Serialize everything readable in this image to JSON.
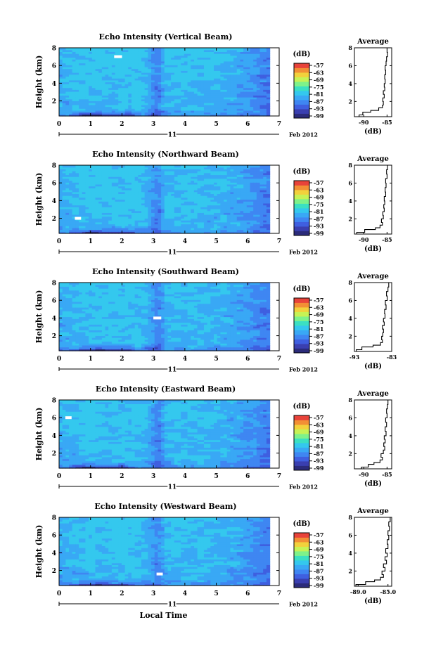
{
  "colors": {
    "colormap": [
      "#2b2b7a",
      "#3a3fb0",
      "#3f5fe0",
      "#3f86f2",
      "#39a8f5",
      "#34c8ee",
      "#3be0c2",
      "#7ef28a",
      "#c7f255",
      "#f2d13c",
      "#f28f35",
      "#e8433a"
    ],
    "axis": "#000000",
    "gap": "#ffffff"
  },
  "common": {
    "xlabel": "Local Time",
    "date_label": "11",
    "date_month": "Feb 2012",
    "ylabel": "Height (km)",
    "colorbar_unit": "(dB)",
    "avg_title": "Average",
    "avg_xlabel": "(dB)"
  },
  "chart_data": [
    {
      "type": "heatmap",
      "title": "Echo Intensity (Vertical Beam)",
      "xlabel": "Local Time",
      "ylabel": "Height (km)",
      "xlim": [
        0,
        7
      ],
      "ylim": [
        0.3,
        8
      ],
      "data_end_time": 6.7,
      "x_ticks": [
        "0",
        "1",
        "2",
        "3",
        "4",
        "5",
        "6",
        "7"
      ],
      "y_ticks": [
        "2",
        "4",
        "6",
        "8"
      ],
      "colorbar": {
        "label": "(dB)",
        "ticks": [
          "-57",
          "-63",
          "-69",
          "-75",
          "-81",
          "-87",
          "-93",
          "-99"
        ]
      },
      "profile": {
        "title": "Average",
        "xlabel": "(dB)",
        "xlim": [
          -92,
          -84
        ],
        "x_ticks": [
          "-90",
          "-85"
        ],
        "y_ticks": [
          "2",
          "4",
          "6",
          "8"
        ],
        "heights": [
          0.3,
          0.5,
          0.8,
          1.0,
          1.3,
          1.6,
          2.0,
          2.4,
          2.8,
          3.2,
          3.6,
          4.0,
          4.5,
          5.0,
          5.5,
          6.0,
          6.5,
          7.0,
          7.5,
          8.0
        ],
        "values": [
          -91.0,
          -90.2,
          -88.5,
          -86.8,
          -86.0,
          -85.8,
          -85.9,
          -85.6,
          -85.8,
          -85.5,
          -85.6,
          -85.4,
          -85.5,
          -85.3,
          -85.4,
          -85.2,
          -85.1,
          -84.9,
          -85.0,
          -84.8
        ]
      }
    },
    {
      "type": "heatmap",
      "title": "Echo Intensity (Northward Beam)",
      "xlabel": "Local Time",
      "ylabel": "Height (km)",
      "xlim": [
        0,
        7
      ],
      "ylim": [
        0.3,
        8
      ],
      "data_end_time": 6.7,
      "x_ticks": [
        "0",
        "1",
        "2",
        "3",
        "4",
        "5",
        "6",
        "7"
      ],
      "y_ticks": [
        "2",
        "4",
        "6",
        "8"
      ],
      "colorbar": {
        "label": "(dB)",
        "ticks": [
          "-57",
          "-63",
          "-69",
          "-75",
          "-81",
          "-87",
          "-93",
          "-99"
        ]
      },
      "profile": {
        "title": "Average",
        "xlabel": "(dB)",
        "xlim": [
          -92,
          -84
        ],
        "x_ticks": [
          "-90",
          "-85"
        ],
        "y_ticks": [
          "2",
          "4",
          "6",
          "8"
        ],
        "heights": [
          0.3,
          0.5,
          0.8,
          1.0,
          1.3,
          1.6,
          2.0,
          2.4,
          2.8,
          3.2,
          3.6,
          4.0,
          4.5,
          5.0,
          5.5,
          6.0,
          6.5,
          7.0,
          7.5,
          8.0
        ],
        "values": [
          -91.5,
          -89.8,
          -87.5,
          -86.5,
          -86.0,
          -86.2,
          -85.8,
          -85.9,
          -85.6,
          -85.7,
          -85.5,
          -85.6,
          -85.3,
          -85.4,
          -85.2,
          -85.3,
          -85.0,
          -85.1,
          -84.9,
          -84.9
        ]
      }
    },
    {
      "type": "heatmap",
      "title": "Echo Intensity (Southward Beam)",
      "xlabel": "Local Time",
      "ylabel": "Height (km)",
      "xlim": [
        0,
        7
      ],
      "ylim": [
        0.3,
        8
      ],
      "data_end_time": 6.7,
      "x_ticks": [
        "0",
        "1",
        "2",
        "3",
        "4",
        "5",
        "6",
        "7"
      ],
      "y_ticks": [
        "2",
        "4",
        "6",
        "8"
      ],
      "colorbar": {
        "label": "(dB)",
        "ticks": [
          "-57",
          "-63",
          "-69",
          "-75",
          "-81",
          "-87",
          "-93",
          "-99"
        ]
      },
      "profile": {
        "title": "Average",
        "xlabel": "(dB)",
        "xlim": [
          -93,
          -83
        ],
        "x_ticks": [
          "-93",
          "-83"
        ],
        "y_ticks": [
          "2",
          "4",
          "6",
          "8"
        ],
        "heights": [
          0.3,
          0.5,
          0.8,
          1.0,
          1.3,
          1.6,
          2.0,
          2.4,
          2.8,
          3.2,
          3.6,
          4.0,
          4.5,
          5.0,
          5.5,
          6.0,
          6.5,
          7.0,
          7.5,
          8.0
        ],
        "values": [
          -92.5,
          -91.0,
          -88.0,
          -86.0,
          -85.5,
          -85.7,
          -85.4,
          -85.2,
          -85.5,
          -85.0,
          -85.2,
          -84.8,
          -84.9,
          -84.5,
          -84.7,
          -84.2,
          -84.4,
          -84.0,
          -83.8,
          -83.5
        ]
      }
    },
    {
      "type": "heatmap",
      "title": "Echo Intensity (Eastward Beam)",
      "xlabel": "Local Time",
      "ylabel": "Height (km)",
      "xlim": [
        0,
        7
      ],
      "ylim": [
        0.3,
        8
      ],
      "data_end_time": 6.7,
      "x_ticks": [
        "0",
        "1",
        "2",
        "3",
        "4",
        "5",
        "6",
        "7"
      ],
      "y_ticks": [
        "2",
        "4",
        "6",
        "8"
      ],
      "colorbar": {
        "label": "(dB)",
        "ticks": [
          "-57",
          "-63",
          "-69",
          "-75",
          "-81",
          "-87",
          "-93",
          "-99"
        ]
      },
      "profile": {
        "title": "Average",
        "xlabel": "(dB)",
        "xlim": [
          -92,
          -84
        ],
        "x_ticks": [
          "-90",
          "-85"
        ],
        "y_ticks": [
          "2",
          "4",
          "6",
          "8"
        ],
        "heights": [
          0.3,
          0.5,
          0.8,
          1.0,
          1.3,
          1.6,
          2.0,
          2.4,
          2.8,
          3.2,
          3.6,
          4.0,
          4.5,
          5.0,
          5.5,
          6.0,
          6.5,
          7.0,
          7.5,
          8.0
        ],
        "values": [
          -90.5,
          -89.0,
          -87.8,
          -86.5,
          -86.0,
          -86.3,
          -85.8,
          -85.5,
          -85.7,
          -85.4,
          -85.6,
          -85.2,
          -85.4,
          -85.1,
          -85.3,
          -85.0,
          -85.1,
          -84.9,
          -84.8,
          -84.7
        ]
      }
    },
    {
      "type": "heatmap",
      "title": "Echo Intensity (Westward Beam)",
      "xlabel": "Local Time",
      "ylabel": "Height (km)",
      "xlim": [
        0,
        7
      ],
      "ylim": [
        0.3,
        8
      ],
      "data_end_time": 6.7,
      "x_ticks": [
        "0",
        "1",
        "2",
        "3",
        "4",
        "5",
        "6",
        "7"
      ],
      "y_ticks": [
        "2",
        "4",
        "6",
        "8"
      ],
      "colorbar": {
        "label": "(dB)",
        "ticks": [
          "-57",
          "-63",
          "-69",
          "-75",
          "-81",
          "-87",
          "-93",
          "-99"
        ]
      },
      "profile": {
        "title": "Average",
        "xlabel": "(dB)",
        "xlim": [
          -89.5,
          -84.5
        ],
        "x_ticks": [
          "-89.0",
          "-85.0"
        ],
        "y_ticks": [
          "2",
          "4",
          "6",
          "8"
        ],
        "heights": [
          0.3,
          0.5,
          0.8,
          1.0,
          1.3,
          1.6,
          2.0,
          2.4,
          2.8,
          3.2,
          3.6,
          4.0,
          4.5,
          5.0,
          5.5,
          6.0,
          6.5,
          7.0,
          7.5,
          8.0
        ],
        "values": [
          -89.3,
          -88.0,
          -86.8,
          -86.0,
          -85.6,
          -85.8,
          -85.4,
          -85.6,
          -85.2,
          -85.4,
          -85.1,
          -85.3,
          -85.0,
          -85.1,
          -84.9,
          -85.0,
          -84.8,
          -84.9,
          -84.7,
          -84.6
        ]
      }
    }
  ]
}
